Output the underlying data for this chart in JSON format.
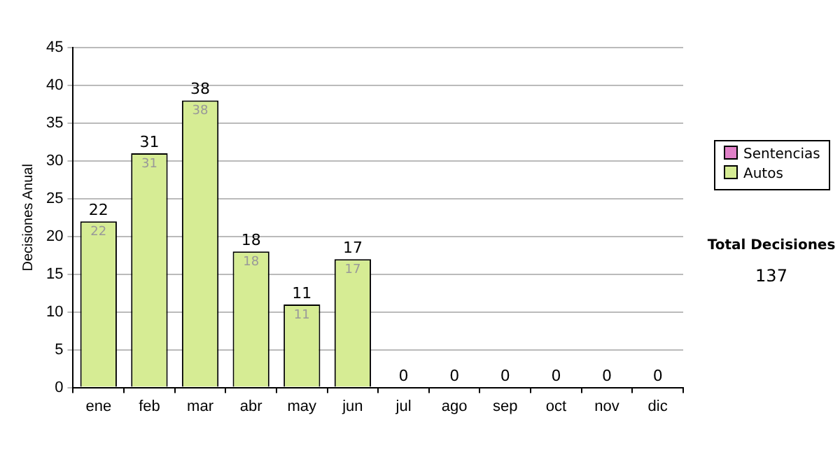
{
  "chart_data": {
    "type": "bar",
    "stacked": true,
    "ylabel": "Decisiones Anual",
    "categories": [
      "ene",
      "feb",
      "mar",
      "abr",
      "may",
      "jun",
      "jul",
      "ago",
      "sep",
      "oct",
      "nov",
      "dic"
    ],
    "series": [
      {
        "name": "Sentencias",
        "color": "#e080c8",
        "values": [
          0,
          0,
          0,
          0,
          0,
          0,
          0,
          0,
          0,
          0,
          0,
          0
        ]
      },
      {
        "name": "Autos",
        "color": "#d6ec94",
        "values": [
          22,
          31,
          38,
          18,
          11,
          17,
          0,
          0,
          0,
          0,
          0,
          0
        ],
        "value_labels": [
          "22",
          "31",
          "38",
          "18",
          "11",
          "17",
          null,
          null,
          null,
          null,
          null,
          null
        ]
      }
    ],
    "totals": [
      "22",
      "31",
      "38",
      "18",
      "11",
      "17",
      "0",
      "0",
      "0",
      "0",
      "0",
      "0"
    ],
    "ylim": [
      0,
      45
    ],
    "yticks": [
      0,
      5,
      10,
      15,
      20,
      25,
      30,
      35,
      40,
      45
    ],
    "grid": "y",
    "legend": "right",
    "annotations": [
      "Total Decisiones",
      "137"
    ]
  }
}
